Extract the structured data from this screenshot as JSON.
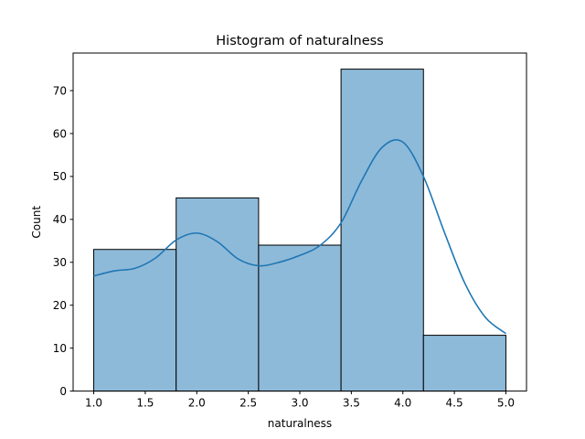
{
  "chart_data": {
    "type": "bar",
    "title": "Histogram of naturalness",
    "xlabel": "naturalness",
    "ylabel": "Count",
    "xlim": [
      0.8,
      5.2
    ],
    "ylim": [
      0,
      78.75
    ],
    "x_ticks": [
      1.0,
      1.5,
      2.0,
      2.5,
      3.0,
      3.5,
      4.0,
      4.5,
      5.0
    ],
    "x_tick_labels": [
      "1.0",
      "1.5",
      "2.0",
      "2.5",
      "3.0",
      "3.5",
      "4.0",
      "4.5",
      "5.0"
    ],
    "y_ticks": [
      0,
      10,
      20,
      30,
      40,
      50,
      60,
      70
    ],
    "y_tick_labels": [
      "0",
      "10",
      "20",
      "30",
      "40",
      "50",
      "60",
      "70"
    ],
    "bin_edges": [
      1.0,
      1.8,
      2.6,
      3.4,
      4.2,
      5.0
    ],
    "values": [
      33,
      45,
      34,
      75,
      13
    ],
    "kde": {
      "x": [
        1.0,
        1.2,
        1.4,
        1.6,
        1.8,
        2.0,
        2.2,
        2.4,
        2.6,
        2.8,
        3.0,
        3.2,
        3.4,
        3.6,
        3.8,
        4.0,
        4.2,
        4.4,
        4.6,
        4.8,
        5.0
      ],
      "y": [
        26.8,
        28.0,
        28.6,
        31.0,
        35.2,
        36.8,
        34.8,
        30.8,
        29.2,
        30.0,
        31.6,
        34.0,
        39.2,
        49.0,
        56.8,
        58.0,
        50.0,
        37.2,
        25.2,
        17.2,
        13.4
      ]
    },
    "colors": {
      "bar_fill": "#8ebad9",
      "bar_edge": "#000000",
      "kde_line": "#1f77b4"
    },
    "grid": false,
    "legend": "none"
  }
}
